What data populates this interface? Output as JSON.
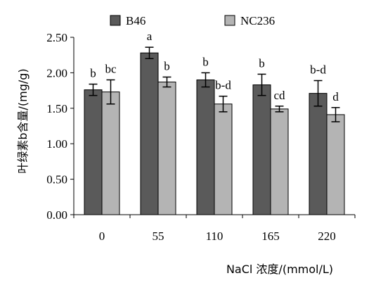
{
  "chart_data": {
    "type": "bar",
    "title": "",
    "xlabel": "NaCl 浓度/(mmol/L)",
    "ylabel": "叶绿素b含量/(mg/g)",
    "categories": [
      "0",
      "55",
      "110",
      "165",
      "220"
    ],
    "y_ticks": [
      "0.00",
      "0.50",
      "1.00",
      "1.50",
      "2.00",
      "2.50"
    ],
    "ylim": [
      0,
      2.5
    ],
    "grid": false,
    "legend_position": "top",
    "series": [
      {
        "name": "B46",
        "color": "#5a5a5a",
        "values": [
          1.76,
          2.28,
          1.9,
          1.83,
          1.71
        ],
        "errors": [
          0.08,
          0.08,
          0.1,
          0.15,
          0.18
        ],
        "labels": [
          "b",
          "a",
          "b",
          "b",
          "b-d"
        ]
      },
      {
        "name": "NC236",
        "color": "#b4b4b4",
        "values": [
          1.73,
          1.87,
          1.56,
          1.49,
          1.41
        ],
        "errors": [
          0.17,
          0.07,
          0.11,
          0.04,
          0.1
        ],
        "labels": [
          "bc",
          "b",
          "b-d",
          "cd",
          "d"
        ]
      }
    ]
  }
}
